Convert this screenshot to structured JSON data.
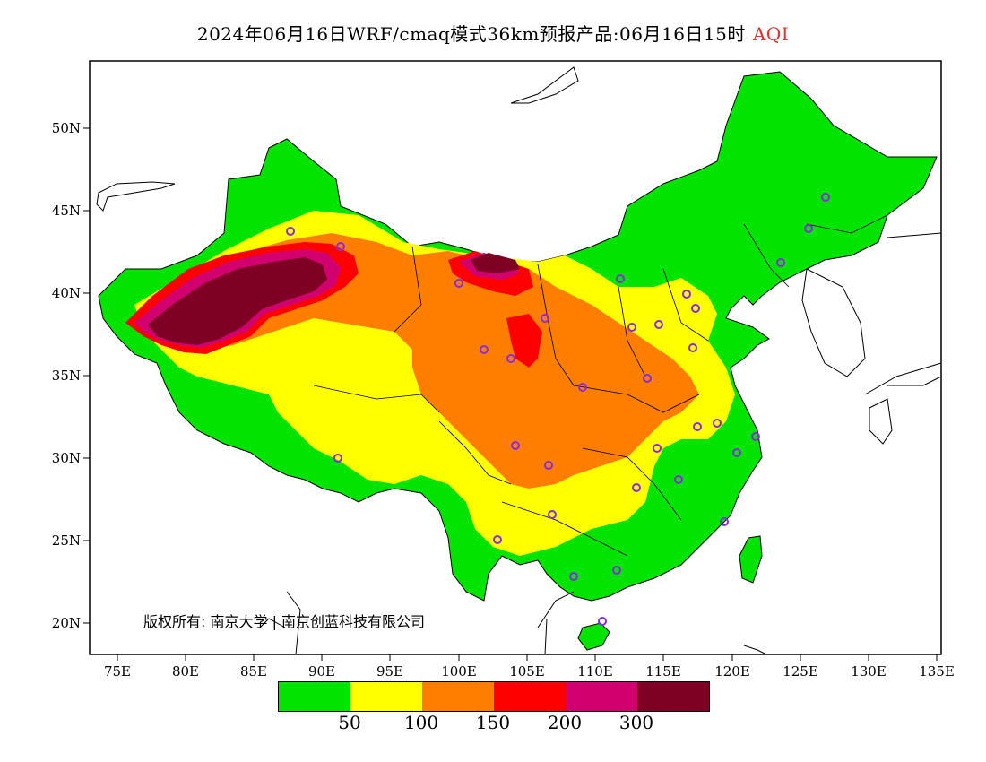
{
  "header": {
    "title": "2024年06月16日WRF/cmaq模式36km预报产品:06月16日15时",
    "variable": "AQI"
  },
  "axes": {
    "lat_labels": [
      "50N",
      "45N",
      "40N",
      "35N",
      "30N",
      "25N",
      "20N"
    ],
    "lon_labels": [
      "75E",
      "80E",
      "85E",
      "90E",
      "95E",
      "100E",
      "105E",
      "110E",
      "115E",
      "120E",
      "125E",
      "130E",
      "135E"
    ]
  },
  "copyright": "版权所有: 南京大学 | 南京创蓝科技有限公司",
  "legend": {
    "colors": [
      "#00e400",
      "#ffff00",
      "#ff7e00",
      "#ff0000",
      "#d1006e",
      "#7e0023"
    ],
    "ticks": [
      "50",
      "100",
      "150",
      "200",
      "300"
    ]
  },
  "colors": {
    "land_border": "#000000",
    "station_marker": "#8a2be2",
    "background": "#ffffff"
  }
}
